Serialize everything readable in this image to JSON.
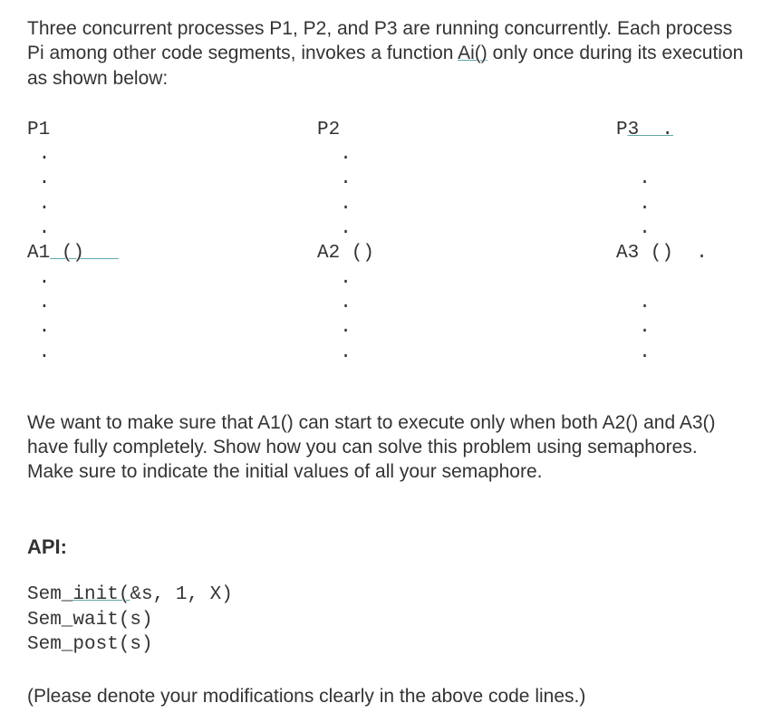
{
  "intro": {
    "text_before_ai": "Three concurrent processes P1, P2, and P3 are running concurrently. Each process Pi among other code segments, invokes a function ",
    "ai": "Ai()",
    "text_after_ai": " only once during its execution as shown below:"
  },
  "code": {
    "p1": {
      "header": "P1",
      "dots_before": " .\n .\n .\n .",
      "func_prefix": "A1",
      "func_underlined": " ()   ",
      "dots_after": " .\n .\n .\n ."
    },
    "p2": {
      "header": "P2",
      "dots_before": "  .\n  .\n  .\n  .",
      "func": "A2 ()",
      "dots_after": "  .\n  .\n  .\n  ."
    },
    "p3": {
      "header_prefix": "P",
      "header_underlined": "3  .",
      "dots_before": "\n  .\n  .\n  .",
      "func": "A3 ()  .",
      "dots_after": "\n  .\n  .\n  ."
    }
  },
  "middle": {
    "text": "We want to make sure that A1() can start to execute only when both A2() and A3() have fully completely. Show how you can solve this problem using semaphores. Make sure to indicate the initial values of all your semaphore."
  },
  "api": {
    "heading": "API:",
    "line1_prefix": "Sem_",
    "line1_underlined": "init(",
    "line1_suffix": "&s, 1, X)",
    "line2": "Sem_wait(s)",
    "line3": "Sem_post(s)"
  },
  "final": {
    "text": "(Please denote your modifications clearly in the above code lines.)"
  }
}
